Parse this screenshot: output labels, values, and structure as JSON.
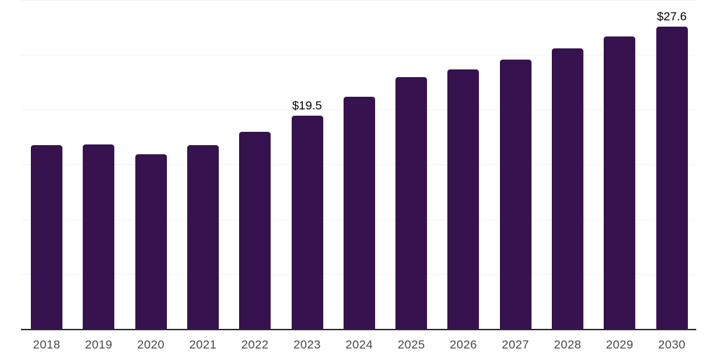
{
  "chart_data": {
    "type": "bar",
    "title": "",
    "xlabel": "",
    "ylabel": "",
    "categories": [
      "2018",
      "2019",
      "2020",
      "2021",
      "2022",
      "2023",
      "2024",
      "2025",
      "2026",
      "2027",
      "2028",
      "2029",
      "2030"
    ],
    "values": [
      16.8,
      16.9,
      16.0,
      16.8,
      18.0,
      19.5,
      21.2,
      23.0,
      23.7,
      24.6,
      25.6,
      26.7,
      27.6
    ],
    "data_labels": {
      "2023": "$19.5",
      "2030": "$27.6"
    },
    "ylim": [
      0,
      30
    ],
    "gridline_step": 5,
    "grid": true,
    "y_tick_labels_visible": false,
    "legend_position": "none",
    "colors": {
      "bar": "#36124e",
      "gridline": "#f2f1f4",
      "axis_line": "#2b2b2b",
      "tick_label": "#474747",
      "data_label": "#000000",
      "background": "#ffffff"
    }
  }
}
